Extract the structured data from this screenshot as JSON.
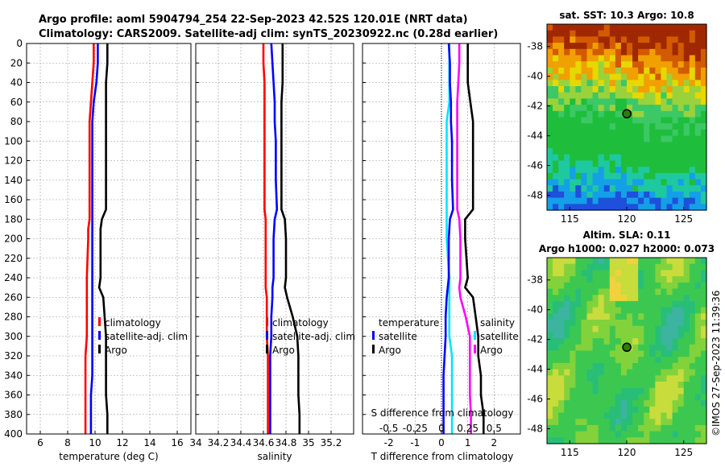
{
  "header": {
    "title_line1": "Argo profile: aoml 5904794_254 22-Sep-2023 42.52S 120.01E (NRT data)",
    "title_line2": "Climatology: CARS2009. Satellite-adj clim: synTS_20230922.nc (0.28d earlier)"
  },
  "credit": "©IMOS 27-Sep-2023 11:39:36",
  "colors": {
    "climatology": "#ff0000",
    "satellite": "#0000ff",
    "argo": "#000000",
    "t_satellite": "#00e5ff",
    "s_argo": "#ff00ff"
  },
  "chart_data": [
    {
      "type": "line",
      "id": "temperature",
      "xlabel": "temperature (deg C)",
      "ylabel": "depth",
      "xlim": [
        5,
        17
      ],
      "ylim": [
        0,
        400
      ],
      "xticks": [
        6,
        8,
        10,
        12,
        14,
        16
      ],
      "xtick_labels": [
        "6",
        "8",
        "10",
        "12",
        "14",
        "16"
      ],
      "yticks": [
        0,
        20,
        40,
        60,
        80,
        100,
        120,
        140,
        160,
        180,
        200,
        220,
        240,
        260,
        280,
        300,
        320,
        340,
        360,
        380,
        400
      ],
      "ytick_labels": [
        "0",
        "20",
        "40",
        "60",
        "80",
        "100",
        "120",
        "140",
        "160",
        "180",
        "200",
        "220",
        "240",
        "260",
        "280",
        "300",
        "320",
        "340",
        "360",
        "380",
        "400"
      ],
      "grid": true,
      "legend": "lower-right",
      "legend_labels": [
        "climatology",
        "satellite-adj. clim",
        "Argo"
      ],
      "depth": [
        0,
        20,
        40,
        60,
        80,
        100,
        140,
        170,
        180,
        190,
        200,
        240,
        250,
        260,
        280,
        300,
        320,
        340,
        360,
        380,
        400
      ],
      "series": [
        {
          "name": "climatology",
          "color": "#ff0000",
          "values": [
            9.9,
            9.9,
            9.8,
            9.7,
            9.6,
            9.6,
            9.6,
            9.6,
            9.6,
            9.5,
            9.5,
            9.4,
            9.4,
            9.4,
            9.4,
            9.4,
            9.3,
            9.3,
            9.3,
            9.3,
            9.3
          ]
        },
        {
          "name": "satellite-adj. clim",
          "color": "#0000ff",
          "values": [
            10.2,
            10.2,
            10.1,
            9.9,
            9.8,
            9.8,
            9.8,
            9.8,
            9.8,
            9.8,
            9.8,
            9.8,
            9.8,
            9.8,
            9.8,
            9.8,
            9.8,
            9.8,
            9.7,
            9.7,
            9.7
          ]
        },
        {
          "name": "Argo",
          "color": "#000000",
          "values": [
            10.9,
            10.9,
            10.8,
            10.8,
            10.8,
            10.8,
            10.8,
            10.8,
            10.5,
            10.4,
            10.4,
            10.4,
            10.3,
            10.6,
            10.7,
            10.8,
            10.8,
            10.8,
            10.8,
            10.9,
            10.9
          ]
        }
      ]
    },
    {
      "type": "line",
      "id": "salinity",
      "xlabel": "salinity",
      "ylabel": "",
      "xlim": [
        34,
        35.4
      ],
      "ylim": [
        0,
        400
      ],
      "xticks": [
        34,
        34.2,
        34.4,
        34.6,
        34.8,
        35,
        35.2
      ],
      "xtick_labels": [
        "34",
        "34.2",
        "34.4",
        "34.6",
        "34.8",
        "35",
        "35.2"
      ],
      "grid": true,
      "legend": "lower-right",
      "legend_labels": [
        "climatology",
        "satellite-adj. clim",
        "Argo"
      ],
      "depth": [
        0,
        20,
        40,
        60,
        80,
        100,
        140,
        170,
        180,
        200,
        240,
        250,
        260,
        280,
        300,
        320,
        340,
        360,
        380,
        400
      ],
      "series": [
        {
          "name": "climatology",
          "color": "#ff0000",
          "values": [
            34.6,
            34.6,
            34.61,
            34.61,
            34.61,
            34.61,
            34.61,
            34.61,
            34.62,
            34.62,
            34.62,
            34.62,
            34.63,
            34.63,
            34.63,
            34.64,
            34.64,
            34.64,
            34.64,
            34.64
          ]
        },
        {
          "name": "satellite-adj. clim",
          "color": "#0000ff",
          "values": [
            34.67,
            34.68,
            34.69,
            34.7,
            34.7,
            34.71,
            34.71,
            34.72,
            34.7,
            34.69,
            34.69,
            34.68,
            34.68,
            34.67,
            34.67,
            34.66,
            34.66,
            34.66,
            34.66,
            34.66
          ]
        },
        {
          "name": "Argo",
          "color": "#000000",
          "values": [
            34.77,
            34.77,
            34.77,
            34.76,
            34.76,
            34.76,
            34.76,
            34.76,
            34.79,
            34.8,
            34.8,
            34.79,
            34.81,
            34.86,
            34.9,
            34.91,
            34.91,
            34.91,
            34.92,
            34.92
          ]
        }
      ]
    },
    {
      "type": "line",
      "id": "difference",
      "xlabel": "T difference from climatology",
      "top_xlabel": "S difference from climatology",
      "xlim": [
        -3,
        3
      ],
      "ylim": [
        0,
        400
      ],
      "xticks": [
        -2,
        -1,
        0,
        1,
        2
      ],
      "xtick_labels": [
        "-2",
        "-1",
        "0",
        "1",
        "2"
      ],
      "top_xticks": [
        -0.5,
        -0.25,
        0,
        0.25,
        0.5
      ],
      "top_xtick_labels": [
        "-0.5",
        "-0.25",
        "0",
        "0.25",
        "0.5"
      ],
      "grid": true,
      "legend": "lower",
      "legend_groups": {
        "temperature": "temperature",
        "salinity": "salinity"
      },
      "legend_labels": [
        "satellite",
        "Argo",
        "satellite",
        "Argo"
      ],
      "depth": [
        0,
        20,
        40,
        60,
        80,
        100,
        140,
        170,
        180,
        200,
        240,
        250,
        260,
        280,
        300,
        320,
        340,
        360,
        380,
        400
      ],
      "series": [
        {
          "name": "T satellite",
          "color": "#00e5ff",
          "values": [
            0.3,
            0.3,
            0.3,
            0.3,
            0.2,
            0.2,
            0.2,
            0.2,
            0.2,
            0.2,
            0.3,
            0.3,
            0.3,
            0.3,
            0.3,
            0.4,
            0.4,
            0.4,
            0.4,
            0.4
          ]
        },
        {
          "name": "T Argo",
          "color": "#000000",
          "values": [
            1.0,
            1.0,
            1.0,
            1.1,
            1.2,
            1.2,
            1.2,
            1.2,
            0.9,
            0.9,
            1.0,
            0.9,
            1.2,
            1.3,
            1.4,
            1.4,
            1.5,
            1.5,
            1.6,
            1.6
          ]
        },
        {
          "name": "S satellite",
          "color": "#0000ff",
          "values": [
            0.07,
            0.08,
            0.08,
            0.09,
            0.09,
            0.1,
            0.1,
            0.11,
            0.08,
            0.07,
            0.07,
            0.06,
            0.05,
            0.04,
            0.04,
            0.03,
            0.02,
            0.02,
            0.02,
            0.02
          ]
        },
        {
          "name": "S Argo",
          "color": "#ff00ff",
          "values": [
            0.17,
            0.17,
            0.16,
            0.15,
            0.15,
            0.15,
            0.15,
            0.15,
            0.17,
            0.18,
            0.18,
            0.17,
            0.18,
            0.23,
            0.27,
            0.27,
            0.27,
            0.27,
            0.28,
            0.28
          ]
        }
      ]
    },
    {
      "type": "heatmap",
      "id": "sst-map",
      "title": "sat. SST: 10.3 Argo: 10.8",
      "xlim": [
        113,
        127
      ],
      "ylim": [
        -49,
        -36.5
      ],
      "xticks": [
        115,
        120,
        125
      ],
      "xtick_labels": [
        "115",
        "120",
        "125"
      ],
      "yticks": [
        -38,
        -40,
        -42,
        -44,
        -46,
        -48
      ],
      "ytick_labels": [
        "-38",
        "-40",
        "-42",
        "-44",
        "-46",
        "-48"
      ],
      "marker": {
        "lon": 120.01,
        "lat": -42.52
      }
    },
    {
      "type": "heatmap",
      "id": "sla-map",
      "title": "Altim. SLA: 0.11",
      "subtitle": "Argo h1000: 0.027 h2000: 0.073",
      "xlim": [
        113,
        127
      ],
      "ylim": [
        -49,
        -36.5
      ],
      "xticks": [
        115,
        120,
        125
      ],
      "xtick_labels": [
        "115",
        "120",
        "125"
      ],
      "yticks": [
        -38,
        -40,
        -42,
        -44,
        -46,
        -48
      ],
      "ytick_labels": [
        "-38",
        "-40",
        "-42",
        "-44",
        "-46",
        "-48"
      ],
      "marker": {
        "lon": 120.01,
        "lat": -42.52
      }
    }
  ]
}
